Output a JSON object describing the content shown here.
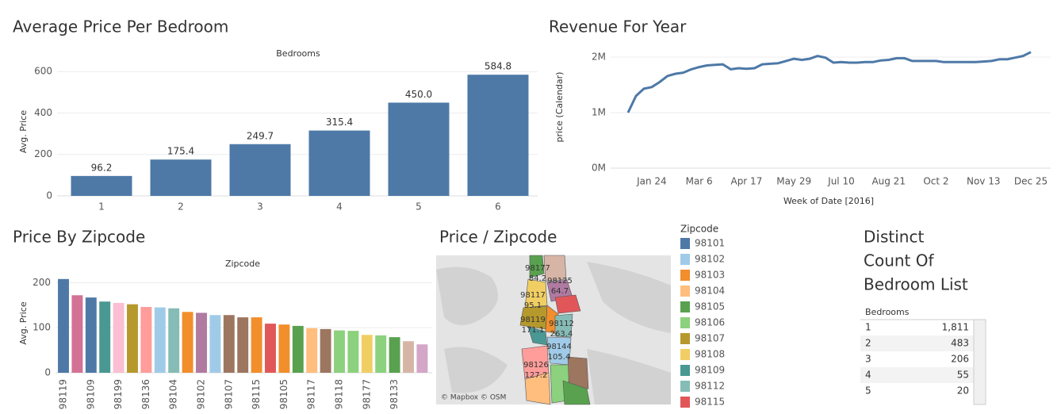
{
  "chart_data": [
    {
      "type": "bar",
      "title": "Average Price Per Bedroom",
      "x_label": "Bedrooms",
      "y_label": "Avg. Price",
      "categories": [
        "1",
        "2",
        "3",
        "4",
        "5",
        "6"
      ],
      "values": [
        96.2,
        175.4,
        249.7,
        315.4,
        450.0,
        584.8
      ],
      "value_labels": [
        "96.2",
        "175.4",
        "249.7",
        "315.4",
        "450.0",
        "584.8"
      ],
      "color": "#4e79a7",
      "ylim": [
        0,
        620
      ],
      "yticks": [
        0,
        200,
        400,
        600
      ],
      "grid": true
    },
    {
      "type": "line",
      "title": "Revenue For Year",
      "x_label": "Week of Date [2016]",
      "y_label": "price (Calendar)",
      "categories": [
        null,
        null,
        null,
        "Jan 24",
        null,
        null,
        null,
        null,
        null,
        "Mar 6",
        null,
        null,
        null,
        null,
        null,
        "Apr 17",
        null,
        null,
        null,
        null,
        null,
        "May 29",
        null,
        null,
        null,
        null,
        null,
        "Jul 10",
        null,
        null,
        null,
        null,
        null,
        "Aug 21",
        null,
        null,
        null,
        null,
        null,
        "Oct 2",
        null,
        null,
        null,
        null,
        null,
        "Nov 13",
        null,
        null,
        null,
        null,
        null,
        "Dec 25"
      ],
      "values": [
        1000000,
        1300000,
        1430000,
        1460000,
        1550000,
        1660000,
        1700000,
        1720000,
        1780000,
        1820000,
        1850000,
        1860000,
        1870000,
        1780000,
        1800000,
        1790000,
        1800000,
        1870000,
        1880000,
        1890000,
        1930000,
        1970000,
        1950000,
        1970000,
        2020000,
        1990000,
        1900000,
        1910000,
        1900000,
        1900000,
        1910000,
        1910000,
        1940000,
        1950000,
        1980000,
        1980000,
        1930000,
        1930000,
        1930000,
        1930000,
        1910000,
        1910000,
        1910000,
        1910000,
        1910000,
        1920000,
        1930000,
        1960000,
        1960000,
        1990000,
        2020000,
        2090000
      ],
      "color": "#4e79a7",
      "ylim": [
        0,
        2200000
      ],
      "yticks": [
        {
          "value": 0,
          "label": "0M"
        },
        {
          "value": 1000000,
          "label": "1M"
        },
        {
          "value": 2000000,
          "label": "2M"
        }
      ],
      "grid": true
    },
    {
      "type": "bar",
      "title": "Price By Zipcode",
      "x_label": "Zipcode",
      "y_label": "Avg. Price",
      "categories": [
        "98119",
        null,
        "98109",
        null,
        "98199",
        null,
        "98136",
        null,
        "98104",
        null,
        "98102",
        null,
        "98107",
        null,
        "98115",
        null,
        "98105",
        null,
        "98117",
        null,
        "98118",
        null,
        "98177",
        null,
        "98133",
        null,
        null
      ],
      "values": [
        208,
        172,
        167,
        158,
        155,
        152,
        146,
        145,
        143,
        135,
        133,
        128,
        128,
        123,
        123,
        109,
        107,
        104,
        99,
        97,
        94,
        93,
        84,
        83,
        79,
        70,
        63
      ],
      "colors": [
        "#4e79a7",
        "#d37295",
        "#4e79a7",
        "#499894",
        "#fabfd2",
        "#b6992d",
        "#ff9d9a",
        "#a0cbe8",
        "#86bcb6",
        "#f28e2b",
        "#b07aa1",
        "#a0cbe8",
        "#9d7660",
        "#9d7660",
        "#f28e2b",
        "#e15759",
        "#f28e2b",
        "#59a14f",
        "#ffbe7d",
        "#9d7660",
        "#8cd17d",
        "#8cd17d",
        "#f1ce63",
        "#8cd17d",
        "#59a14f",
        "#d7b5a6",
        "#d4a6c8"
      ],
      "ylim": [
        0,
        220
      ],
      "yticks": [
        0,
        100,
        200
      ],
      "grid": true
    }
  ],
  "map": {
    "title": "Price / Zipcode",
    "attribution": "© Mapbox © OSM",
    "labels": [
      {
        "zip": "98177",
        "price": 84.2
      },
      {
        "zip": "98125",
        "price": 64.7
      },
      {
        "zip": "98117",
        "price": 95.1
      },
      {
        "zip": "98119",
        "price": 171.1
      },
      {
        "zip": "98112",
        "price": 263.4
      },
      {
        "zip": "98144",
        "price": 105.4
      },
      {
        "zip": "98126",
        "price": 127.2
      }
    ]
  },
  "legend": {
    "title": "Zipcode",
    "items": [
      {
        "name": "98101",
        "color": "#4e79a7"
      },
      {
        "name": "98102",
        "color": "#a0cbe8"
      },
      {
        "name": "98103",
        "color": "#f28e2b"
      },
      {
        "name": "98104",
        "color": "#ffbe7d"
      },
      {
        "name": "98105",
        "color": "#59a14f"
      },
      {
        "name": "98106",
        "color": "#8cd17d"
      },
      {
        "name": "98107",
        "color": "#b6992d"
      },
      {
        "name": "98108",
        "color": "#f1ce63"
      },
      {
        "name": "98109",
        "color": "#499894"
      },
      {
        "name": "98112",
        "color": "#86bcb6"
      },
      {
        "name": "98115",
        "color": "#e15759"
      }
    ]
  },
  "table": {
    "title_lines": [
      "Distinct",
      "Count Of",
      "Bedroom List"
    ],
    "header": "Bedrooms",
    "rows": [
      [
        "1",
        "1,811"
      ],
      [
        "2",
        "483"
      ],
      [
        "3",
        "206"
      ],
      [
        "4",
        "55"
      ],
      [
        "5",
        "20"
      ]
    ]
  }
}
